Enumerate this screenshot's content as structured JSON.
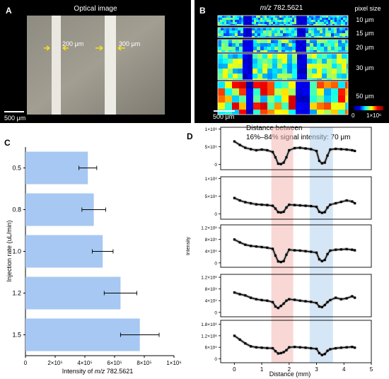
{
  "panel_a": {
    "letter": "A",
    "title": "Optical image",
    "widths": [
      "200 μm",
      "300 μm"
    ],
    "scale_bar": "500 μm"
  },
  "panel_b": {
    "letter": "B",
    "title_italic": "m/z",
    "title_rest": " 782.5621",
    "legend_title": "pixel size",
    "pixel_sizes": [
      "10 μm",
      "15 μm",
      "20 μm",
      "30 μm",
      "50 μm"
    ],
    "scale_bar": "500 μm",
    "colorbar_min": "0",
    "colorbar_max": "1×10⁶"
  },
  "chart_data": [
    {
      "type": "bar",
      "panel": "C",
      "orientation": "horizontal",
      "categories": [
        "0.5",
        "0.8",
        "1.0",
        "1.2",
        "1.5"
      ],
      "values": [
        420000,
        460000,
        520000,
        640000,
        770000
      ],
      "errors": [
        60000,
        80000,
        70000,
        110000,
        130000
      ],
      "ylabel": "Injection rate (uL/min)",
      "xlabel_italic": "m/z",
      "xlabel_prefix": "Intensity of ",
      "xlabel_suffix": " 782.5621",
      "xlim": [
        0,
        1000000
      ],
      "xticks": [
        "0",
        "2×10⁵",
        "4×10⁵",
        "6×10⁵",
        "8×10⁵",
        "1×10⁶"
      ],
      "bar_color": "#a6c8f2"
    },
    {
      "type": "scatter",
      "panel": "D",
      "annotation": [
        "Distance between",
        "16%–84% signal intensity: 70 μm"
      ],
      "xlabel": "Distance (mm)",
      "ylabel": "Intensity",
      "xlim": [
        -0.5,
        5
      ],
      "xticks": [
        "0",
        "1",
        "2",
        "3",
        "4",
        "5"
      ],
      "shaded_regions": [
        {
          "x": [
            1.35,
            2.15
          ],
          "color": "#f4b6b0"
        },
        {
          "x": [
            2.75,
            3.6
          ],
          "color": "#b3d2ee"
        }
      ],
      "series": [
        {
          "ymax": 1000000,
          "yticks": [
            "0",
            "5×10⁵",
            "1×10⁶"
          ],
          "ylim": [
            -150000,
            1050000
          ],
          "x": [
            0.0,
            0.2,
            0.4,
            0.6,
            0.8,
            1.0,
            1.2,
            1.4,
            1.5,
            1.6,
            1.7,
            1.8,
            1.9,
            2.0,
            2.2,
            2.4,
            2.6,
            2.8,
            3.0,
            3.1,
            3.2,
            3.3,
            3.4,
            3.5,
            3.7,
            3.9,
            4.1,
            4.3,
            4.4
          ],
          "y": [
            650000,
            550000,
            470000,
            430000,
            400000,
            420000,
            400000,
            350000,
            200000,
            20000,
            10000,
            50000,
            200000,
            400000,
            460000,
            470000,
            450000,
            430000,
            380000,
            100000,
            30000,
            50000,
            250000,
            420000,
            440000,
            430000,
            420000,
            400000,
            380000
          ]
        },
        {
          "ymax": 1000000,
          "yticks": [
            "0",
            "5×10⁵",
            "1×10⁶"
          ],
          "ylim": [
            -150000,
            1050000
          ],
          "x": [
            0.0,
            0.2,
            0.4,
            0.6,
            0.8,
            1.0,
            1.2,
            1.4,
            1.5,
            1.6,
            1.7,
            1.8,
            1.9,
            2.0,
            2.2,
            2.4,
            2.6,
            2.8,
            3.0,
            3.1,
            3.2,
            3.3,
            3.4,
            3.5,
            3.7,
            3.9,
            4.1,
            4.3,
            4.4
          ],
          "y": [
            450000,
            380000,
            330000,
            300000,
            270000,
            260000,
            250000,
            230000,
            150000,
            50000,
            40000,
            60000,
            180000,
            260000,
            250000,
            240000,
            230000,
            220000,
            200000,
            60000,
            30000,
            50000,
            180000,
            260000,
            300000,
            340000,
            380000,
            350000,
            300000
          ]
        },
        {
          "ymax": 1200000,
          "yticks": [
            "0",
            "4×10⁵",
            "8×10⁵",
            "1.2×10⁶"
          ],
          "ylim": [
            -150000,
            1300000
          ],
          "x": [
            0.0,
            0.2,
            0.4,
            0.6,
            0.8,
            1.0,
            1.2,
            1.4,
            1.5,
            1.6,
            1.7,
            1.8,
            1.9,
            2.0,
            2.2,
            2.4,
            2.6,
            2.8,
            3.0,
            3.1,
            3.2,
            3.3,
            3.4,
            3.5,
            3.7,
            3.9,
            4.1,
            4.3,
            4.4
          ],
          "y": [
            800000,
            700000,
            620000,
            580000,
            560000,
            540000,
            520000,
            480000,
            250000,
            50000,
            30000,
            60000,
            280000,
            450000,
            430000,
            420000,
            400000,
            380000,
            350000,
            120000,
            60000,
            100000,
            300000,
            420000,
            450000,
            460000,
            470000,
            450000,
            430000
          ]
        },
        {
          "ymax": 1200000,
          "yticks": [
            "0",
            "4×10⁵",
            "8×10⁵",
            "1.2×10⁶"
          ],
          "ylim": [
            -150000,
            1300000
          ],
          "x": [
            0.0,
            0.2,
            0.4,
            0.6,
            0.8,
            1.0,
            1.2,
            1.4,
            1.5,
            1.6,
            1.7,
            1.8,
            1.9,
            2.0,
            2.2,
            2.4,
            2.6,
            2.8,
            3.0,
            3.1,
            3.2,
            3.3,
            3.4,
            3.5,
            3.7,
            3.9,
            4.1,
            4.3,
            4.4
          ],
          "y": [
            680000,
            620000,
            580000,
            500000,
            450000,
            420000,
            400000,
            350000,
            200000,
            150000,
            220000,
            300000,
            400000,
            450000,
            430000,
            400000,
            380000,
            360000,
            320000,
            200000,
            180000,
            250000,
            350000,
            420000,
            500000,
            450000,
            480000,
            550000,
            500000
          ]
        },
        {
          "ymax": 1800000,
          "yticks": [
            "0",
            "6×10⁵",
            "1.2×10⁶",
            "1.8×10⁶"
          ],
          "ylim": [
            -200000,
            2000000
          ],
          "x": [
            0.0,
            0.2,
            0.4,
            0.6,
            0.8,
            1.0,
            1.2,
            1.4,
            1.5,
            1.6,
            1.7,
            1.8,
            1.9,
            2.0,
            2.2,
            2.4,
            2.6,
            2.8,
            3.0,
            3.1,
            3.2,
            3.3,
            3.4,
            3.5,
            3.7,
            3.9,
            4.1,
            4.3,
            4.4
          ],
          "y": [
            1200000,
            1000000,
            800000,
            650000,
            600000,
            580000,
            560000,
            550000,
            400000,
            280000,
            300000,
            350000,
            450000,
            600000,
            620000,
            600000,
            580000,
            550000,
            520000,
            300000,
            200000,
            250000,
            420000,
            500000,
            550000,
            580000,
            600000,
            620000,
            580000
          ]
        }
      ]
    }
  ]
}
